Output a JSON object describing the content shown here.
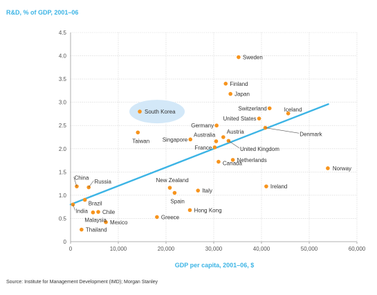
{
  "chart_data": {
    "type": "scatter",
    "title": "R&D, % of GDP, 2001–06",
    "xlabel": "GDP per capita, 2001–06, $",
    "ylabel": "R&D, % of GDP, 2001–06",
    "xlim": [
      0,
      60000
    ],
    "ylim": [
      0,
      4.5
    ],
    "x_ticks": [
      "0",
      "10,000",
      "20,000",
      "30,000",
      "40,000",
      "50,000",
      "60,000"
    ],
    "y_ticks": [
      "0",
      "0.5",
      "1.0",
      "1.5",
      "2.0",
      "2.5",
      "3.0",
      "3.5",
      "4.0",
      "4.5"
    ],
    "grid": true,
    "trendline": {
      "x": [
        0,
        54000
      ],
      "y": [
        0.8,
        2.96
      ],
      "color": "#3cb4e5"
    },
    "highlight": "South Korea",
    "point_color": "#f7941d",
    "points": [
      {
        "label": "Sweden",
        "x": 35200,
        "y": 3.97
      },
      {
        "label": "Finland",
        "x": 32500,
        "y": 3.4
      },
      {
        "label": "Japan",
        "x": 33500,
        "y": 3.18
      },
      {
        "label": "Switzerland",
        "x": 41700,
        "y": 2.87
      },
      {
        "label": "Iceland",
        "x": 45600,
        "y": 2.76
      },
      {
        "label": "South Korea",
        "x": 14500,
        "y": 2.8
      },
      {
        "label": "United States",
        "x": 39500,
        "y": 2.65
      },
      {
        "label": "Germany",
        "x": 30600,
        "y": 2.5
      },
      {
        "label": "Austria",
        "x": 32000,
        "y": 2.25
      },
      {
        "label": "Denmark",
        "x": 40800,
        "y": 2.45
      },
      {
        "label": "Taiwan",
        "x": 14100,
        "y": 2.35
      },
      {
        "label": "Australia",
        "x": 30500,
        "y": 2.16
      },
      {
        "label": "Singapore",
        "x": 25100,
        "y": 2.2
      },
      {
        "label": "France",
        "x": 30200,
        "y": 2.03
      },
      {
        "label": "United Kingdom",
        "x": 33100,
        "y": 2.17
      },
      {
        "label": "Netherlands",
        "x": 34000,
        "y": 1.76
      },
      {
        "label": "Canada",
        "x": 31000,
        "y": 1.72
      },
      {
        "label": "Norway",
        "x": 53900,
        "y": 1.58
      },
      {
        "label": "New Zealand",
        "x": 20800,
        "y": 1.16
      },
      {
        "label": "Italy",
        "x": 26700,
        "y": 1.1
      },
      {
        "label": "Spain",
        "x": 21800,
        "y": 1.05
      },
      {
        "label": "Ireland",
        "x": 41000,
        "y": 1.19
      },
      {
        "label": "China",
        "x": 1300,
        "y": 1.19
      },
      {
        "label": "Russia",
        "x": 3800,
        "y": 1.17
      },
      {
        "label": "Brazil",
        "x": 3000,
        "y": 0.9
      },
      {
        "label": "India",
        "x": 500,
        "y": 0.8
      },
      {
        "label": "Chile",
        "x": 5800,
        "y": 0.64
      },
      {
        "label": "Malaysia",
        "x": 4700,
        "y": 0.63
      },
      {
        "label": "Mexico",
        "x": 7400,
        "y": 0.42
      },
      {
        "label": "Hong Kong",
        "x": 25000,
        "y": 0.68
      },
      {
        "label": "Greece",
        "x": 18100,
        "y": 0.53
      },
      {
        "label": "Thailand",
        "x": 2300,
        "y": 0.26
      }
    ]
  },
  "source": "Source: Institute for Management Development (IMD); Morgan Stanley"
}
